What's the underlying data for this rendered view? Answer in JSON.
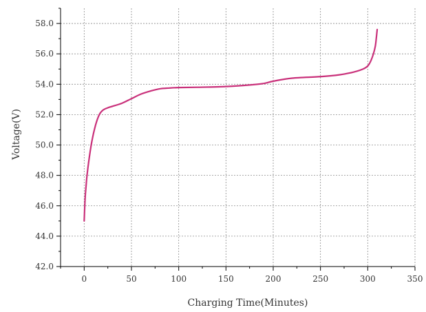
{
  "chart_data": {
    "type": "line",
    "title": "",
    "xlabel": "Charging Time(Minutes)",
    "ylabel": "Voltage(V)",
    "xlim": [
      -25,
      350
    ],
    "ylim": [
      42,
      59
    ],
    "x_ticks": [
      0,
      50,
      100,
      150,
      200,
      250,
      300,
      350
    ],
    "x_tick_labels": [
      "0",
      "50",
      "100",
      "150",
      "200",
      "250",
      "300",
      "350"
    ],
    "y_ticks": [
      42,
      44,
      46,
      48,
      50,
      52,
      54,
      56,
      58
    ],
    "y_tick_labels": [
      "42.0",
      "44.0",
      "46.0",
      "48.0",
      "50.0",
      "52.0",
      "54.0",
      "56.0",
      "58.0"
    ],
    "grid": true,
    "series": [
      {
        "color": "#c9307a",
        "x": [
          0,
          1,
          2,
          3,
          5,
          8,
          12,
          16,
          20,
          25,
          30,
          40,
          50,
          60,
          70,
          80,
          90,
          100,
          120,
          150,
          175,
          190,
          200,
          220,
          250,
          270,
          285,
          295,
          300,
          303,
          306,
          308,
          309,
          310
        ],
        "y": [
          45.0,
          46.5,
          47.3,
          48.0,
          49.0,
          50.2,
          51.3,
          52.0,
          52.3,
          52.45,
          52.55,
          52.75,
          53.05,
          53.35,
          53.55,
          53.7,
          53.75,
          53.78,
          53.8,
          53.85,
          53.95,
          54.05,
          54.2,
          54.4,
          54.5,
          54.62,
          54.8,
          55.0,
          55.2,
          55.5,
          56.0,
          56.5,
          57.0,
          57.6
        ]
      }
    ]
  }
}
